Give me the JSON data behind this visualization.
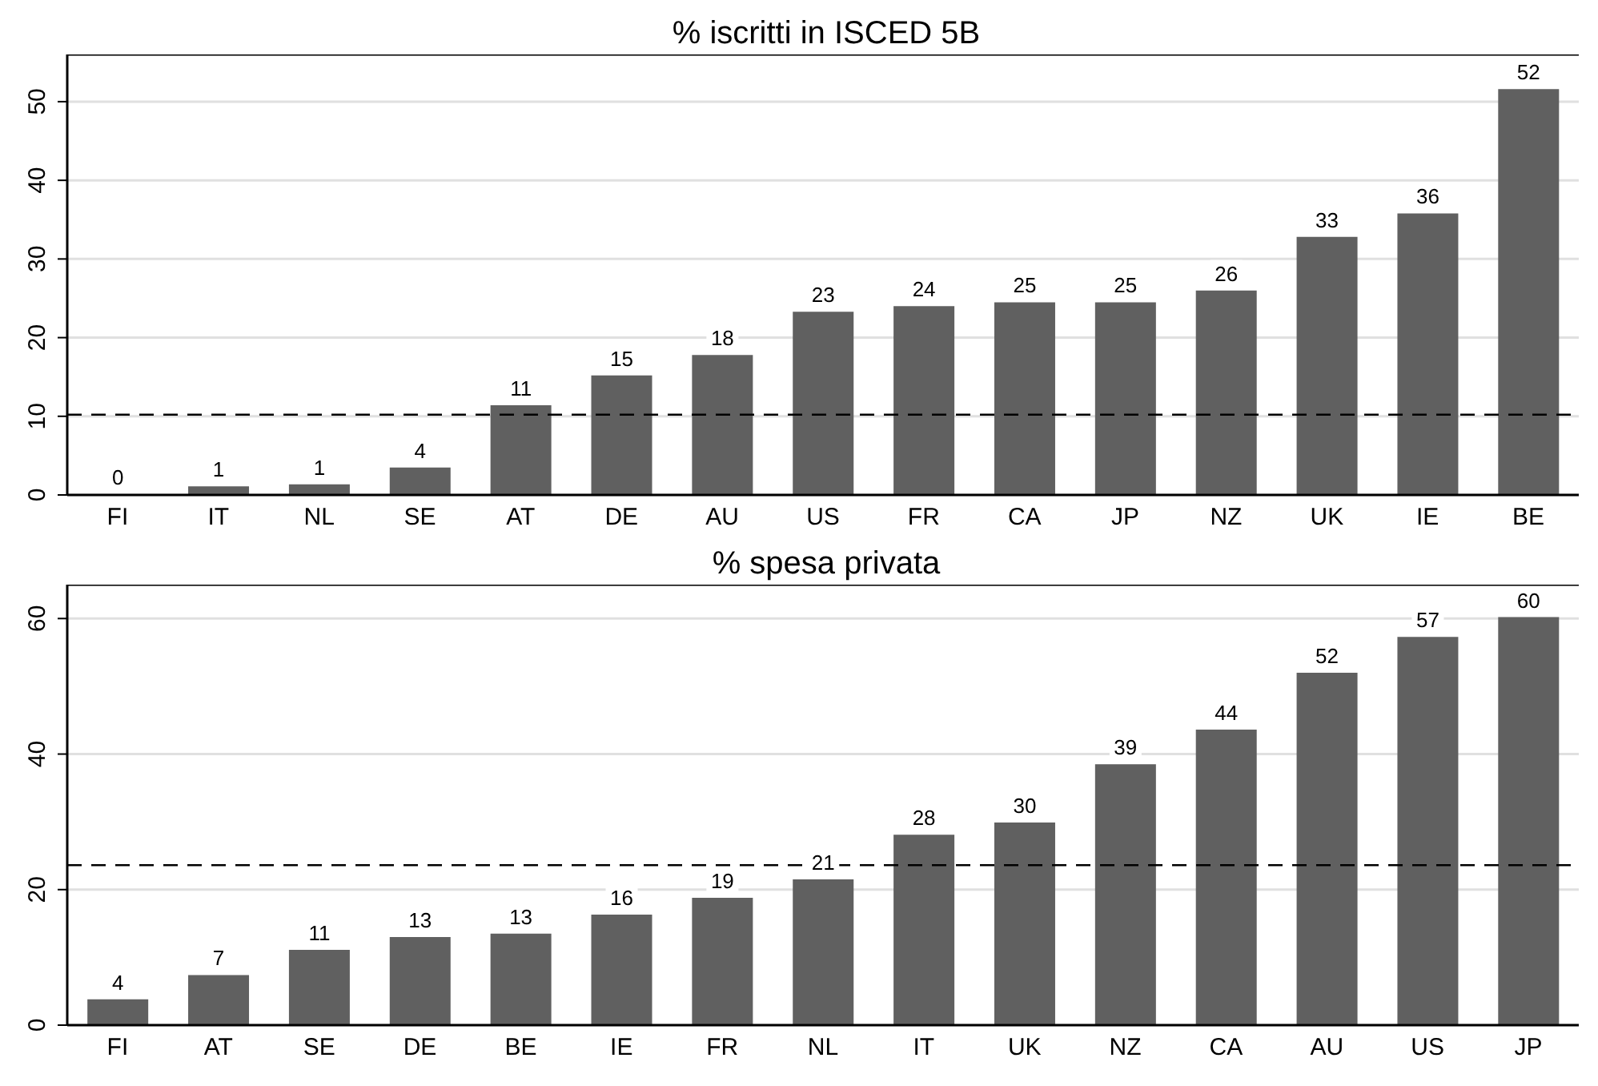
{
  "chart_data": [
    {
      "type": "bar",
      "title": "% iscritti in ISCED 5B",
      "categories": [
        "FI",
        "IT",
        "NL",
        "SE",
        "AT",
        "DE",
        "AU",
        "US",
        "FR",
        "CA",
        "JP",
        "NZ",
        "UK",
        "IE",
        "BE"
      ],
      "series": [
        {
          "color": "#606060",
          "values": [
            0.1,
            1.1,
            1.35,
            3.5,
            11.4,
            15.2,
            17.8,
            23.3,
            24.0,
            24.5,
            24.5,
            26.0,
            32.8,
            35.8,
            51.6
          ],
          "value_labels": [
            "0",
            "1",
            "1",
            "4",
            "11",
            "15",
            "18",
            "23",
            "24",
            "25",
            "25",
            "26",
            "33",
            "36",
            "52"
          ]
        }
      ],
      "ylim": [
        0,
        56
      ],
      "yticks": [
        0,
        10,
        20,
        30,
        40,
        50
      ],
      "grid": "y",
      "legend": false,
      "ref_lines": [
        {
          "axis": "y",
          "value": 10.2,
          "color": "#000000",
          "line_style": "dashed"
        }
      ]
    },
    {
      "type": "bar",
      "title": "% spesa privata",
      "categories": [
        "FI",
        "AT",
        "SE",
        "DE",
        "BE",
        "IE",
        "FR",
        "NL",
        "IT",
        "UK",
        "NZ",
        "CA",
        "AU",
        "US",
        "JP"
      ],
      "series": [
        {
          "color": "#606060",
          "values": [
            3.8,
            7.4,
            11.1,
            13.0,
            13.5,
            16.3,
            18.8,
            21.5,
            28.1,
            29.9,
            38.5,
            43.6,
            52.0,
            57.3,
            60.2
          ],
          "value_labels": [
            "4",
            "7",
            "11",
            "13",
            "13",
            "16",
            "19",
            "21",
            "28",
            "30",
            "39",
            "44",
            "52",
            "57",
            "60"
          ]
        }
      ],
      "ylim": [
        0,
        65
      ],
      "yticks": [
        0,
        20,
        40,
        60
      ],
      "grid": "y",
      "legend": false,
      "ref_lines": [
        {
          "axis": "y",
          "value": 23.6,
          "color": "#000000",
          "line_style": "dashed"
        }
      ]
    }
  ]
}
